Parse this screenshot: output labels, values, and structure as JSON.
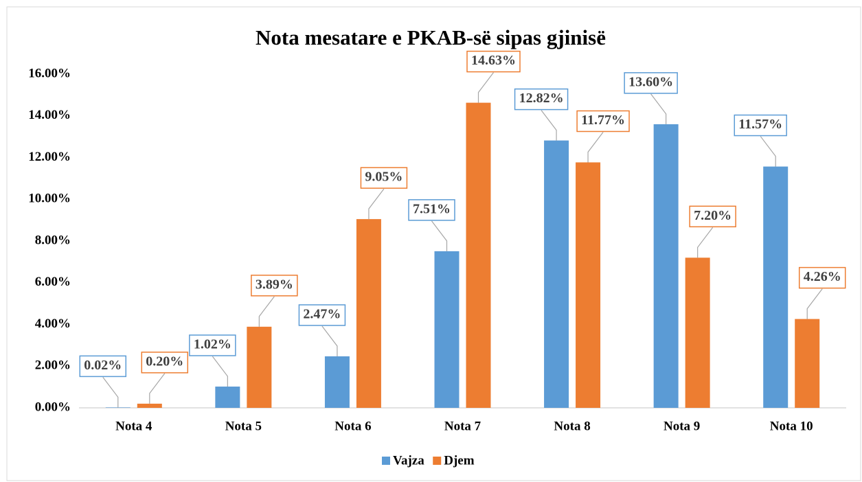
{
  "chart_data": {
    "type": "bar",
    "title": "Nota mesatare e PKAB-së sipas gjinisë",
    "categories": [
      "Nota 4",
      "Nota 5",
      "Nota 6",
      "Nota 7",
      "Nota 8",
      "Nota 9",
      "Nota 10"
    ],
    "series": [
      {
        "name": "Vajza",
        "color": "#5b9bd5",
        "values": [
          0.02,
          1.02,
          2.47,
          7.51,
          12.82,
          13.6,
          11.57
        ],
        "value_labels": [
          "0.02%",
          "1.02%",
          "2.47%",
          "7.51%",
          "12.82%",
          "13.60%",
          "11.57%"
        ]
      },
      {
        "name": "Djem",
        "color": "#ed7d31",
        "values": [
          0.2,
          3.89,
          9.05,
          14.63,
          11.77,
          7.2,
          4.26
        ],
        "value_labels": [
          "0.20%",
          "3.89%",
          "9.05%",
          "14.63%",
          "11.77%",
          "7.20%",
          "4.26%"
        ]
      }
    ],
    "ylim": [
      0,
      16
    ],
    "yticks": [
      {
        "value": 0,
        "label": "0.00%"
      },
      {
        "value": 2,
        "label": "2.00%"
      },
      {
        "value": 4,
        "label": "4.00%"
      },
      {
        "value": 6,
        "label": "6.00%"
      },
      {
        "value": 8,
        "label": "8.00%"
      },
      {
        "value": 10,
        "label": "10.00%"
      },
      {
        "value": 12,
        "label": "12.00%"
      },
      {
        "value": 14,
        "label": "14.00%"
      },
      {
        "value": 16,
        "label": "16.00%"
      }
    ],
    "grid": false,
    "legend": "bottom"
  }
}
